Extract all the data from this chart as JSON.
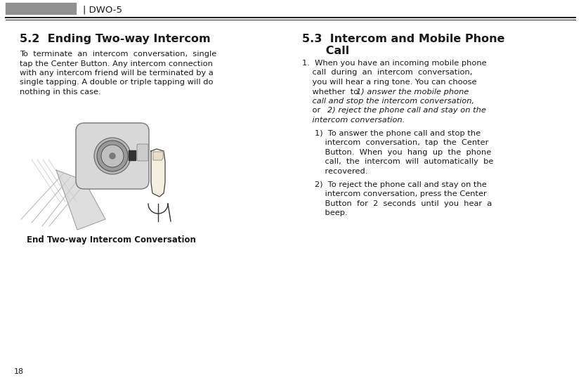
{
  "bg_color": "#ffffff",
  "header_rect_color": "#909090",
  "header_text": "| DWO-5",
  "header_divider_color": "#222222",
  "page_number": "18",
  "left_col_title": "5.2  Ending Two-way Intercom",
  "img_caption": "End Two-way Intercom Conversation",
  "right_col_title_line1": "5.3  Intercom and Mobile Phone",
  "right_col_title_line2": "      Call",
  "font_size_header": 9.5,
  "font_size_title": 11.5,
  "font_size_body": 8.2,
  "font_size_caption": 8.5,
  "font_size_page": 8.0,
  "text_color": "#1a1a1a",
  "gray_color": "#aaaaaa"
}
